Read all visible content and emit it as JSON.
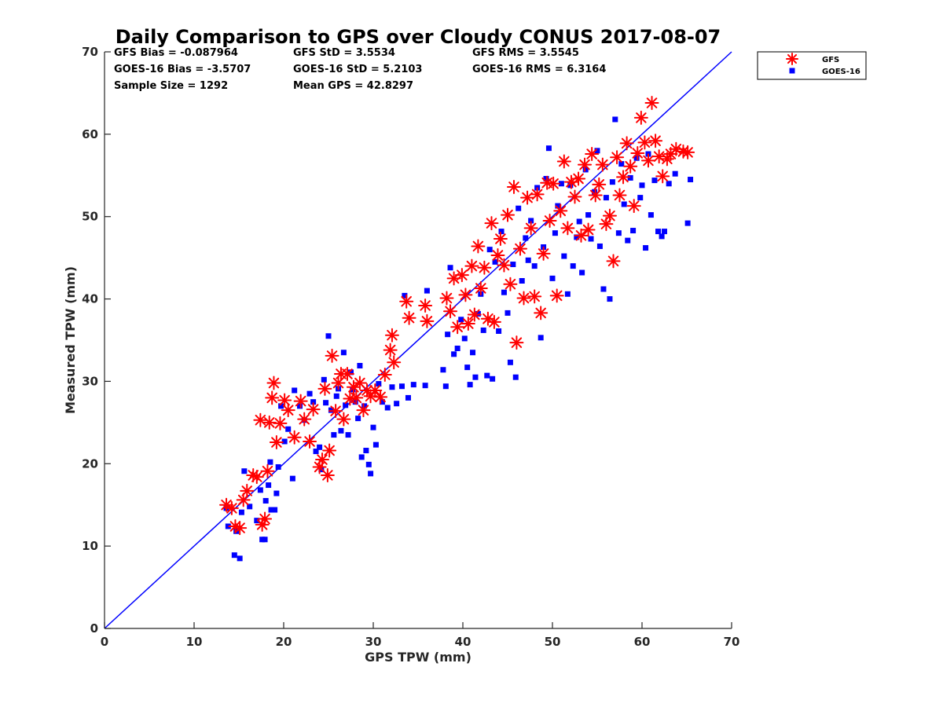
{
  "chart_data": {
    "type": "scatter",
    "title": "Daily Comparison to GPS over Cloudy CONUS 2017-08-07",
    "xlabel": "GPS TPW (mm)",
    "ylabel": "Measured TPW (mm)",
    "xlim": [
      0,
      70
    ],
    "ylim": [
      0,
      70
    ],
    "xticks": [
      "0",
      "10",
      "20",
      "30",
      "40",
      "50",
      "60",
      "70"
    ],
    "yticks": [
      "0",
      "10",
      "20",
      "30",
      "40",
      "50",
      "60",
      "70"
    ],
    "grid": false,
    "legend_position": "outside-top-right",
    "reference_line": {
      "x": [
        0,
        70
      ],
      "y": [
        0,
        70
      ],
      "color": "#0000ff"
    },
    "stats": [
      [
        "GFS Bias = -0.087964",
        "GFS StD = 3.5534",
        "GFS RMS = 3.5545"
      ],
      [
        "GOES-16 Bias = -3.5707",
        "GOES-16 StD = 5.2103",
        "GOES-16 RMS = 6.3164"
      ],
      [
        "Sample Size = 1292",
        "Mean GPS = 42.8297",
        ""
      ]
    ],
    "series": [
      {
        "name": "GOES-16",
        "marker": "square",
        "color": "#0000ff",
        "points": [
          [
            13.6,
            14.6
          ],
          [
            13.8,
            12.4
          ],
          [
            14.5,
            8.9
          ],
          [
            14.7,
            11.8
          ],
          [
            15.1,
            8.5
          ],
          [
            15.3,
            14.1
          ],
          [
            15.6,
            19.1
          ],
          [
            16.2,
            14.8
          ],
          [
            17.0,
            13.1
          ],
          [
            17.4,
            16.8
          ],
          [
            17.6,
            10.8
          ],
          [
            17.9,
            10.8
          ],
          [
            18.0,
            15.5
          ],
          [
            18.3,
            17.4
          ],
          [
            18.5,
            20.2
          ],
          [
            18.6,
            14.4
          ],
          [
            19.0,
            14.4
          ],
          [
            19.2,
            16.4
          ],
          [
            19.4,
            19.6
          ],
          [
            19.7,
            27.0
          ],
          [
            20.1,
            22.7
          ],
          [
            20.5,
            24.2
          ],
          [
            21.0,
            18.2
          ],
          [
            21.2,
            28.9
          ],
          [
            21.8,
            27.0
          ],
          [
            22.3,
            25.3
          ],
          [
            22.9,
            28.5
          ],
          [
            23.3,
            27.5
          ],
          [
            23.6,
            21.5
          ],
          [
            24.0,
            22.0
          ],
          [
            24.2,
            19.3
          ],
          [
            24.5,
            30.2
          ],
          [
            24.7,
            27.4
          ],
          [
            25.0,
            35.5
          ],
          [
            25.3,
            26.5
          ],
          [
            25.6,
            23.5
          ],
          [
            25.9,
            28.2
          ],
          [
            26.1,
            29.1
          ],
          [
            26.4,
            24.0
          ],
          [
            26.7,
            33.5
          ],
          [
            26.9,
            27.1
          ],
          [
            27.2,
            23.5
          ],
          [
            27.5,
            31.1
          ],
          [
            27.7,
            29.0
          ],
          [
            28.0,
            27.5
          ],
          [
            28.3,
            25.5
          ],
          [
            28.5,
            31.9
          ],
          [
            28.7,
            20.8
          ],
          [
            29.0,
            27.0
          ],
          [
            29.2,
            21.6
          ],
          [
            29.5,
            19.9
          ],
          [
            29.7,
            18.8
          ],
          [
            30.0,
            24.4
          ],
          [
            30.3,
            22.3
          ],
          [
            30.6,
            29.7
          ],
          [
            31.0,
            27.5
          ],
          [
            31.6,
            26.8
          ],
          [
            32.1,
            29.3
          ],
          [
            32.6,
            27.3
          ],
          [
            33.2,
            29.4
          ],
          [
            33.5,
            40.4
          ],
          [
            33.9,
            28.0
          ],
          [
            34.5,
            29.6
          ],
          [
            35.8,
            29.5
          ],
          [
            36.0,
            41.0
          ],
          [
            37.8,
            31.4
          ],
          [
            38.1,
            29.4
          ],
          [
            38.3,
            35.7
          ],
          [
            38.6,
            43.8
          ],
          [
            39.0,
            33.3
          ],
          [
            39.4,
            34.0
          ],
          [
            39.8,
            37.5
          ],
          [
            40.2,
            35.2
          ],
          [
            40.5,
            31.7
          ],
          [
            40.8,
            29.6
          ],
          [
            41.1,
            33.5
          ],
          [
            41.4,
            30.5
          ],
          [
            41.7,
            38.2
          ],
          [
            42.0,
            40.6
          ],
          [
            42.3,
            36.2
          ],
          [
            42.7,
            30.7
          ],
          [
            43.0,
            46.0
          ],
          [
            43.3,
            30.3
          ],
          [
            43.6,
            44.5
          ],
          [
            44.0,
            36.1
          ],
          [
            44.3,
            48.2
          ],
          [
            44.6,
            40.8
          ],
          [
            45.0,
            38.3
          ],
          [
            45.3,
            32.3
          ],
          [
            45.6,
            44.2
          ],
          [
            45.9,
            30.5
          ],
          [
            46.2,
            51.0
          ],
          [
            46.6,
            42.2
          ],
          [
            47.0,
            47.4
          ],
          [
            47.3,
            44.7
          ],
          [
            47.6,
            49.5
          ],
          [
            48.0,
            44.0
          ],
          [
            48.3,
            53.5
          ],
          [
            48.7,
            35.3
          ],
          [
            49.0,
            46.3
          ],
          [
            49.3,
            54.6
          ],
          [
            49.6,
            58.3
          ],
          [
            50.0,
            42.5
          ],
          [
            50.3,
            48.0
          ],
          [
            50.6,
            51.3
          ],
          [
            51.0,
            54.0
          ],
          [
            51.3,
            45.2
          ],
          [
            51.7,
            40.6
          ],
          [
            52.0,
            53.8
          ],
          [
            52.3,
            44.0
          ],
          [
            52.7,
            47.5
          ],
          [
            53.0,
            49.4
          ],
          [
            53.3,
            43.2
          ],
          [
            53.7,
            55.7
          ],
          [
            54.0,
            50.2
          ],
          [
            54.3,
            47.3
          ],
          [
            54.7,
            53.0
          ],
          [
            55.0,
            58.0
          ],
          [
            55.3,
            46.4
          ],
          [
            55.7,
            41.2
          ],
          [
            56.0,
            52.3
          ],
          [
            56.4,
            40.0
          ],
          [
            56.7,
            54.2
          ],
          [
            57.0,
            61.8
          ],
          [
            57.4,
            48.0
          ],
          [
            57.7,
            56.4
          ],
          [
            58.0,
            51.5
          ],
          [
            58.4,
            47.1
          ],
          [
            58.7,
            54.7
          ],
          [
            59.0,
            48.3
          ],
          [
            59.4,
            57.1
          ],
          [
            59.8,
            52.3
          ],
          [
            60.0,
            53.8
          ],
          [
            60.4,
            46.2
          ],
          [
            60.7,
            57.6
          ],
          [
            61.0,
            50.2
          ],
          [
            61.4,
            54.4
          ],
          [
            61.8,
            48.2
          ],
          [
            62.2,
            47.6
          ],
          [
            62.5,
            48.2
          ],
          [
            63.0,
            54.0
          ],
          [
            63.7,
            55.2
          ],
          [
            65.1,
            49.2
          ],
          [
            65.4,
            54.5
          ]
        ]
      },
      {
        "name": "GFS",
        "marker": "asterisk",
        "color": "#ff0000",
        "points": [
          [
            13.6,
            15.0
          ],
          [
            14.2,
            14.6
          ],
          [
            14.6,
            12.4
          ],
          [
            15.1,
            12.2
          ],
          [
            15.5,
            15.6
          ],
          [
            15.9,
            16.7
          ],
          [
            16.6,
            18.6
          ],
          [
            17.0,
            18.4
          ],
          [
            17.4,
            25.3
          ],
          [
            17.6,
            12.6
          ],
          [
            17.9,
            13.3
          ],
          [
            18.2,
            19.1
          ],
          [
            18.4,
            25.0
          ],
          [
            18.7,
            28.0
          ],
          [
            18.9,
            29.8
          ],
          [
            19.2,
            22.6
          ],
          [
            19.6,
            24.9
          ],
          [
            20.1,
            27.7
          ],
          [
            20.5,
            26.5
          ],
          [
            21.2,
            23.2
          ],
          [
            21.9,
            27.6
          ],
          [
            22.3,
            25.4
          ],
          [
            22.9,
            22.7
          ],
          [
            23.3,
            26.6
          ],
          [
            24.0,
            19.6
          ],
          [
            24.3,
            20.5
          ],
          [
            24.6,
            29.1
          ],
          [
            24.9,
            18.6
          ],
          [
            25.1,
            21.6
          ],
          [
            25.4,
            33.1
          ],
          [
            25.8,
            26.4
          ],
          [
            26.1,
            29.8
          ],
          [
            26.4,
            30.9
          ],
          [
            26.7,
            25.4
          ],
          [
            27.1,
            30.9
          ],
          [
            27.4,
            27.9
          ],
          [
            27.8,
            29.3
          ],
          [
            28.1,
            28.0
          ],
          [
            28.5,
            29.8
          ],
          [
            28.9,
            26.5
          ],
          [
            29.3,
            28.9
          ],
          [
            29.7,
            28.2
          ],
          [
            30.2,
            28.9
          ],
          [
            30.8,
            28.1
          ],
          [
            31.3,
            30.8
          ],
          [
            31.9,
            33.8
          ],
          [
            32.1,
            35.6
          ],
          [
            32.3,
            32.3
          ],
          [
            33.7,
            39.7
          ],
          [
            34.0,
            37.7
          ],
          [
            35.8,
            39.2
          ],
          [
            36.0,
            37.3
          ],
          [
            38.2,
            40.1
          ],
          [
            38.6,
            38.5
          ],
          [
            39.0,
            42.5
          ],
          [
            39.4,
            36.6
          ],
          [
            39.9,
            42.9
          ],
          [
            40.3,
            40.5
          ],
          [
            40.6,
            37.0
          ],
          [
            41.0,
            44.0
          ],
          [
            41.3,
            38.1
          ],
          [
            41.7,
            46.4
          ],
          [
            42.0,
            41.3
          ],
          [
            42.4,
            43.8
          ],
          [
            42.8,
            37.6
          ],
          [
            43.2,
            49.2
          ],
          [
            43.5,
            37.2
          ],
          [
            43.9,
            45.3
          ],
          [
            44.2,
            47.3
          ],
          [
            44.6,
            44.1
          ],
          [
            45.0,
            50.2
          ],
          [
            45.3,
            41.8
          ],
          [
            45.7,
            53.6
          ],
          [
            46.0,
            34.7
          ],
          [
            46.4,
            46.1
          ],
          [
            46.8,
            40.1
          ],
          [
            47.2,
            52.3
          ],
          [
            47.6,
            48.6
          ],
          [
            48.0,
            40.3
          ],
          [
            48.3,
            52.7
          ],
          [
            48.7,
            38.3
          ],
          [
            49.0,
            45.5
          ],
          [
            49.4,
            54.1
          ],
          [
            49.7,
            49.5
          ],
          [
            50.1,
            54.0
          ],
          [
            50.5,
            40.4
          ],
          [
            50.9,
            50.7
          ],
          [
            51.3,
            56.7
          ],
          [
            51.7,
            48.6
          ],
          [
            52.1,
            54.2
          ],
          [
            52.5,
            52.4
          ],
          [
            52.9,
            54.6
          ],
          [
            53.2,
            47.7
          ],
          [
            53.6,
            56.3
          ],
          [
            54.0,
            48.4
          ],
          [
            54.4,
            57.6
          ],
          [
            54.8,
            52.6
          ],
          [
            55.2,
            53.9
          ],
          [
            55.6,
            56.3
          ],
          [
            56.0,
            49.1
          ],
          [
            56.4,
            50.1
          ],
          [
            56.8,
            44.6
          ],
          [
            57.2,
            57.2
          ],
          [
            57.5,
            52.6
          ],
          [
            57.9,
            54.8
          ],
          [
            58.3,
            58.9
          ],
          [
            58.7,
            56.1
          ],
          [
            59.1,
            51.3
          ],
          [
            59.5,
            57.7
          ],
          [
            59.9,
            62.0
          ],
          [
            60.3,
            59.0
          ],
          [
            60.7,
            56.8
          ],
          [
            61.1,
            63.8
          ],
          [
            61.5,
            59.2
          ],
          [
            61.9,
            57.3
          ],
          [
            62.3,
            54.9
          ],
          [
            62.8,
            57.0
          ],
          [
            63.2,
            57.6
          ],
          [
            63.8,
            58.2
          ],
          [
            64.6,
            57.9
          ],
          [
            65.1,
            57.8
          ]
        ]
      }
    ]
  }
}
